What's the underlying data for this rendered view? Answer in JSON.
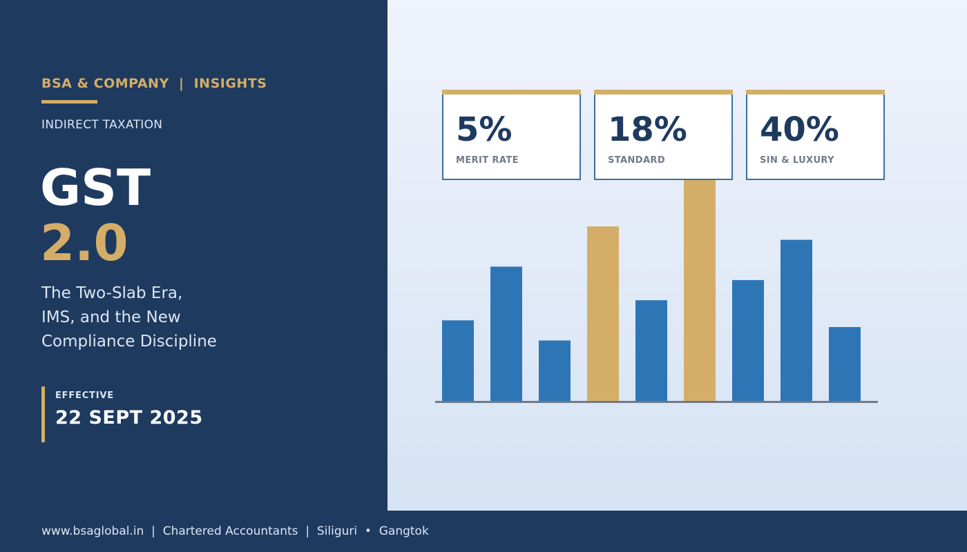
{
  "header": {
    "brand": "BSA & COMPANY  |  INSIGHTS",
    "category": "INDIRECT TAXATION"
  },
  "title": {
    "main": "GST",
    "version": "2.0"
  },
  "subtitle": {
    "lines": [
      "The Two-Slab Era,",
      "IMS, and the New",
      "Compliance Discipline"
    ]
  },
  "effective": {
    "label": "EFFECTIVE",
    "date": "22 SEPT 2025"
  },
  "stats": [
    {
      "value": "5%",
      "label": "MERIT RATE"
    },
    {
      "value": "18%",
      "label": "STANDARD"
    },
    {
      "value": "40%",
      "label": "SIN & LUXURY"
    }
  ],
  "chart_data": {
    "type": "bar",
    "categories": [
      "",
      "",
      "",
      "",
      "",
      "",
      "",
      "",
      ""
    ],
    "values": [
      120,
      200,
      90,
      260,
      150,
      330,
      180,
      240,
      110
    ],
    "highlight": [
      false,
      false,
      false,
      true,
      false,
      true,
      false,
      false,
      false
    ],
    "ylim": [
      0,
      330
    ],
    "grid": false,
    "colors": {
      "base": "#2e75b6",
      "highlight": "#d4ae68",
      "axis": "#707a86"
    }
  },
  "footer": {
    "text": "www.bsaglobal.in  |  Chartered Accountants  |  Siliguri  •  Gangtok"
  },
  "colors": {
    "navy": "#1e3a5f",
    "gold": "#d4ae68",
    "blue": "#2e75b6"
  }
}
